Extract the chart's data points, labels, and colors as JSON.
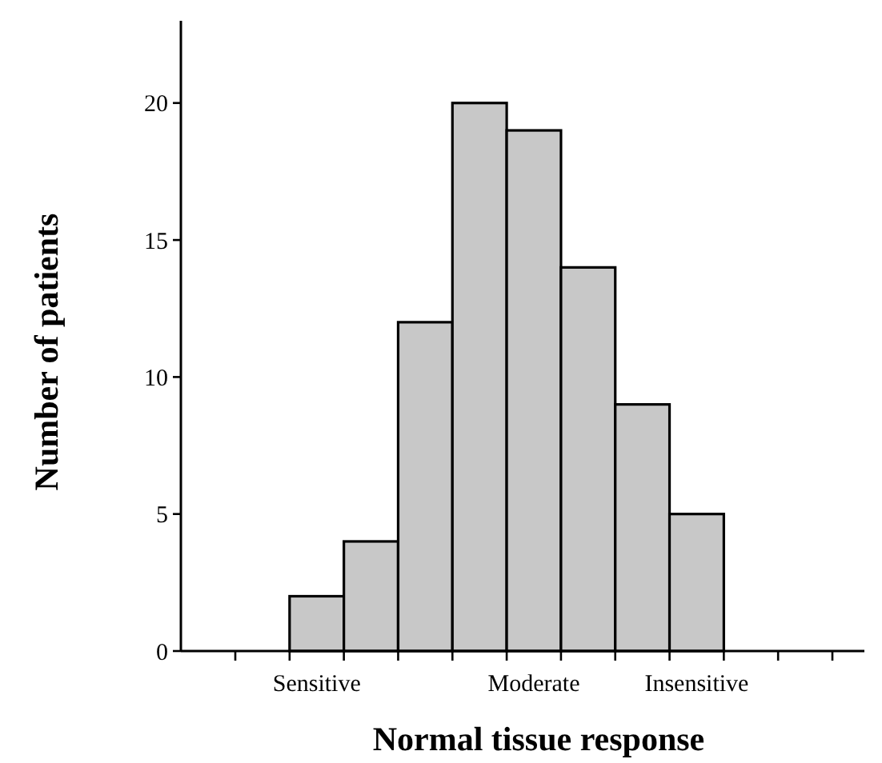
{
  "chart_data": {
    "type": "bar",
    "xlabel": "Normal tissue response",
    "ylabel": "Number of patients",
    "categories": [
      null,
      "Sensitive",
      null,
      null,
      null,
      "Moderate",
      null,
      null,
      "Insensitive",
      null,
      null
    ],
    "values": [
      null,
      2,
      4,
      12,
      20,
      19,
      14,
      9,
      5,
      null,
      null
    ],
    "color": "#c8c8c8",
    "ylim": [
      0,
      23
    ],
    "yticks": [
      0,
      5,
      10,
      15,
      20
    ],
    "grid": false
  }
}
